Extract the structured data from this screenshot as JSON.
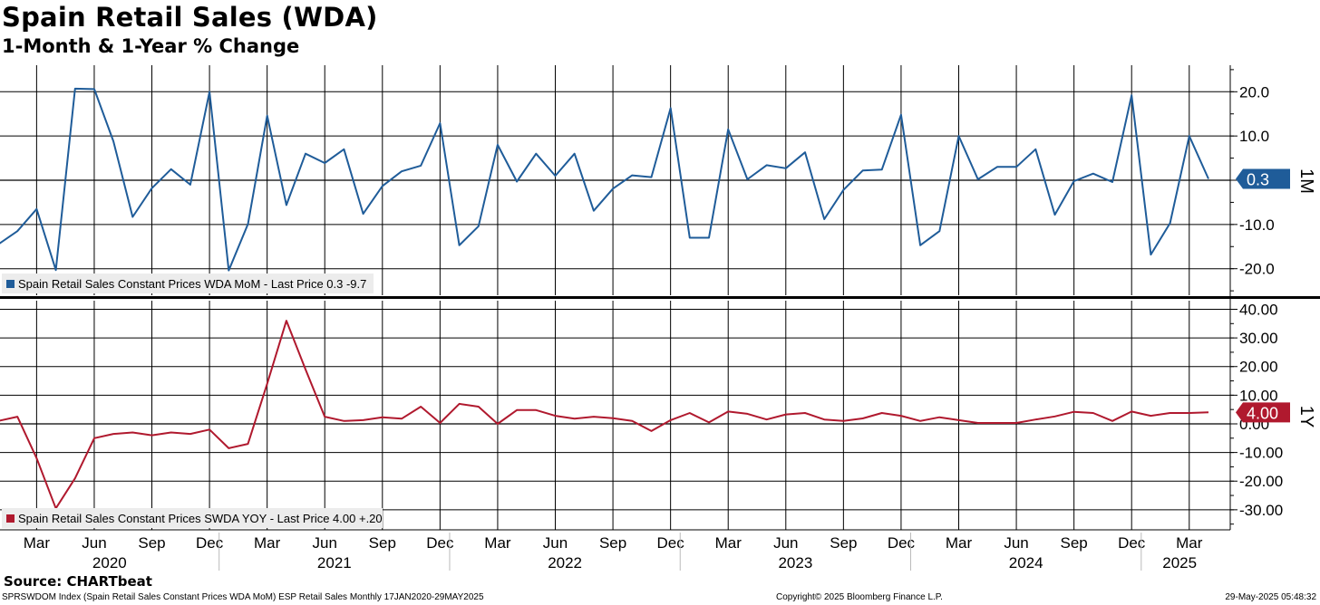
{
  "header": {
    "title": "Spain Retail Sales (WDA)",
    "subtitle": "1-Month & 1-Year % Change"
  },
  "footer": {
    "source": "Source: CHARTbeat",
    "description": "SPRSWDOM Index (Spain Retail Sales Constant Prices WDA MoM) ESP Retail Sales  Monthly 17JAN2020-29MAY2025",
    "copyright": "Copyright© 2025 Bloomberg Finance L.P.",
    "timestamp": "29-May-2025 05:48:32"
  },
  "colors": {
    "mom_line": "#1f5c99",
    "yoy_line": "#b0192e",
    "grid": "#000000",
    "legend_bg": "#ececec"
  },
  "chart_data": [
    {
      "type": "line",
      "panel": "top",
      "x_axis": {
        "month_labels": [
          "Mar",
          "Jun",
          "Sep",
          "Dec",
          "Mar",
          "Jun",
          "Sep",
          "Dec",
          "Mar",
          "Jun",
          "Sep",
          "Dec",
          "Mar",
          "Jun",
          "Sep",
          "Dec",
          "Mar",
          "Jun",
          "Sep",
          "Dec",
          "Mar"
        ],
        "year_labels": [
          "2020",
          "2021",
          "2022",
          "2023",
          "2024",
          "2025"
        ],
        "start": "2020-01",
        "end": "2025-04"
      },
      "ylim": [
        -26,
        26
      ],
      "yticks": [
        20,
        10,
        0,
        -10,
        -20
      ],
      "ytick_labels": [
        "20.0",
        "10.0",
        "",
        "-10.0",
        "-20.0"
      ],
      "axis_label": "1M",
      "last_value_label": "0.3",
      "series": [
        {
          "name": "Spain Retail Sales Constant Prices WDA MoM",
          "legend": "Spain Retail Sales Constant Prices WDA MoM - Last Price 0.3  -9.7",
          "x": [
            "2020-01",
            "2020-02",
            "2020-03",
            "2020-04",
            "2020-05",
            "2020-06",
            "2020-07",
            "2020-08",
            "2020-09",
            "2020-10",
            "2020-11",
            "2020-12",
            "2021-01",
            "2021-02",
            "2021-03",
            "2021-04",
            "2021-05",
            "2021-06",
            "2021-07",
            "2021-08",
            "2021-09",
            "2021-10",
            "2021-11",
            "2021-12",
            "2022-01",
            "2022-02",
            "2022-03",
            "2022-04",
            "2022-05",
            "2022-06",
            "2022-07",
            "2022-08",
            "2022-09",
            "2022-10",
            "2022-11",
            "2022-12",
            "2023-01",
            "2023-02",
            "2023-03",
            "2023-04",
            "2023-05",
            "2023-06",
            "2023-07",
            "2023-08",
            "2023-09",
            "2023-10",
            "2023-11",
            "2023-12",
            "2024-01",
            "2024-02",
            "2024-03",
            "2024-04",
            "2024-05",
            "2024-06",
            "2024-07",
            "2024-08",
            "2024-09",
            "2024-10",
            "2024-11",
            "2024-12",
            "2025-01",
            "2025-02",
            "2025-03",
            "2025-04"
          ],
          "y": [
            -14.5,
            -11.5,
            -6.5,
            -20.3,
            20.7,
            20.6,
            8.8,
            -8.3,
            -1.8,
            2.5,
            -1.0,
            20.0,
            -20.4,
            -9.9,
            14.6,
            -5.6,
            6.0,
            3.9,
            7.0,
            -7.6,
            -1.3,
            2.0,
            3.3,
            12.9,
            -14.7,
            -10.4,
            8.0,
            -0.3,
            6.0,
            1.0,
            6.0,
            -6.9,
            -1.9,
            1.1,
            0.7,
            16.3,
            -13.0,
            -13.0,
            11.5,
            0.2,
            3.4,
            2.7,
            6.3,
            -8.8,
            -2.2,
            2.2,
            2.4,
            14.8,
            -14.7,
            -11.5,
            10.0,
            0.2,
            3.0,
            3.0,
            7.0,
            -7.8,
            -0.2,
            1.5,
            -0.4,
            19.2,
            -16.8,
            -9.7,
            10.0,
            0.3
          ]
        }
      ]
    },
    {
      "type": "line",
      "panel": "bottom",
      "ylim": [
        -37,
        43
      ],
      "yticks": [
        40,
        30,
        20,
        10,
        0,
        -10,
        -20,
        -30
      ],
      "ytick_labels": [
        "40.00",
        "30.00",
        "20.00",
        "10.00",
        "0.00",
        "-10.00",
        "-20.00",
        "-30.00"
      ],
      "axis_label": "1Y",
      "last_value_label": "4.00",
      "series": [
        {
          "name": "Spain Retail Sales Constant Prices SWDA YOY",
          "legend": "Spain Retail Sales Constant Prices SWDA YOY - Last Price 4.00  +.20",
          "x": [
            "2020-01",
            "2020-02",
            "2020-03",
            "2020-04",
            "2020-05",
            "2020-06",
            "2020-07",
            "2020-08",
            "2020-09",
            "2020-10",
            "2020-11",
            "2020-12",
            "2021-01",
            "2021-02",
            "2021-03",
            "2021-04",
            "2021-05",
            "2021-06",
            "2021-07",
            "2021-08",
            "2021-09",
            "2021-10",
            "2021-11",
            "2021-12",
            "2022-01",
            "2022-02",
            "2022-03",
            "2022-04",
            "2022-05",
            "2022-06",
            "2022-07",
            "2022-08",
            "2022-09",
            "2022-10",
            "2022-11",
            "2022-12",
            "2023-01",
            "2023-02",
            "2023-03",
            "2023-04",
            "2023-05",
            "2023-06",
            "2023-07",
            "2023-08",
            "2023-09",
            "2023-10",
            "2023-11",
            "2023-12",
            "2024-01",
            "2024-02",
            "2024-03",
            "2024-04",
            "2024-05",
            "2024-06",
            "2024-07",
            "2024-08",
            "2024-09",
            "2024-10",
            "2024-11",
            "2024-12",
            "2025-01",
            "2025-02",
            "2025-03",
            "2025-04"
          ],
          "y": [
            1.0,
            2.5,
            -12.0,
            -29.5,
            -19.0,
            -5.0,
            -3.5,
            -3.0,
            -4.0,
            -3.0,
            -3.5,
            -2.0,
            -8.5,
            -7.0,
            14.0,
            36.0,
            19.0,
            2.5,
            1.0,
            1.3,
            2.3,
            1.8,
            6.0,
            0.3,
            7.0,
            6.0,
            0.0,
            4.8,
            4.8,
            2.8,
            1.8,
            2.5,
            2.0,
            1.0,
            -2.5,
            1.3,
            3.8,
            0.5,
            4.3,
            3.5,
            1.5,
            3.3,
            3.8,
            1.5,
            1.0,
            1.9,
            3.8,
            2.8,
            1.0,
            2.3,
            1.3,
            0.3,
            0.3,
            0.3,
            1.5,
            2.6,
            4.2,
            3.8,
            1.0,
            4.3,
            2.8,
            3.8,
            3.8,
            4.0
          ]
        }
      ]
    }
  ]
}
